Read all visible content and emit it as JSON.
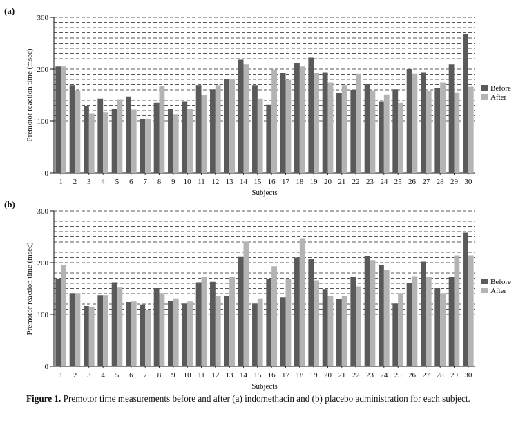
{
  "chart_data": [
    {
      "type": "bar",
      "panel_label": "(a)",
      "xlabel": "Subjects",
      "ylabel": "Premotor reaction time (msec)",
      "ylim": [
        0,
        300
      ],
      "yticks": [
        "0",
        "100",
        "200",
        "300"
      ],
      "categories": [
        "1",
        "2",
        "3",
        "4",
        "5",
        "6",
        "7",
        "8",
        "9",
        "10",
        "11",
        "12",
        "13",
        "14",
        "15",
        "16",
        "17",
        "18",
        "19",
        "20",
        "21",
        "22",
        "23",
        "24",
        "25",
        "26",
        "27",
        "28",
        "29",
        "30"
      ],
      "series": [
        {
          "name": "Before",
          "color": "#5a5a5a",
          "values": [
            205,
            169,
            129,
            143,
            124,
            147,
            104,
            135,
            124,
            138,
            169,
            161,
            181,
            218,
            169,
            131,
            193,
            212,
            222,
            194,
            154,
            160,
            172,
            138,
            161,
            200,
            194,
            163,
            209,
            268
          ]
        },
        {
          "name": "After",
          "color": "#b4b4b4",
          "values": [
            205,
            159,
            114,
            117,
            142,
            122,
            104,
            168,
            113,
            124,
            150,
            169,
            181,
            209,
            143,
            199,
            179,
            205,
            192,
            174,
            169,
            191,
            159,
            151,
            135,
            191,
            158,
            174,
            155,
            166
          ]
        }
      ],
      "grid": "dashed horizontal",
      "legend": "right"
    },
    {
      "type": "bar",
      "panel_label": "(b)",
      "xlabel": "Subjects",
      "ylabel": "Premotor reaction time (msec)",
      "ylim": [
        0,
        300
      ],
      "yticks": [
        "0",
        "100",
        "200",
        "300"
      ],
      "categories": [
        "1",
        "2",
        "3",
        "4",
        "5",
        "6",
        "7",
        "8",
        "9",
        "10",
        "11",
        "12",
        "13",
        "14",
        "15",
        "16",
        "17",
        "18",
        "19",
        "20",
        "21",
        "22",
        "23",
        "24",
        "25",
        "26",
        "27",
        "28",
        "29",
        "30"
      ],
      "series": [
        {
          "name": "Before",
          "color": "#5a5a5a",
          "values": [
            168,
            141,
            116,
            137,
            162,
            124,
            119,
            152,
            126,
            121,
            162,
            163,
            136,
            211,
            121,
            168,
            133,
            210,
            208,
            149,
            130,
            173,
            212,
            195,
            121,
            161,
            202,
            151,
            172,
            258
          ]
        },
        {
          "name": "After",
          "color": "#b4b4b4",
          "values": [
            195,
            141,
            115,
            137,
            153,
            125,
            108,
            141,
            131,
            125,
            173,
            136,
            173,
            241,
            131,
            193,
            169,
            246,
            166,
            136,
            136,
            154,
            205,
            186,
            141,
            174,
            172,
            141,
            214,
            214
          ]
        }
      ],
      "grid": "dashed horizontal",
      "legend": "right"
    }
  ],
  "caption": {
    "lead": "Figure 1.",
    "text": " Premotor time measurements before and after (a) indomethacin and (b) placebo administration for each subject."
  }
}
